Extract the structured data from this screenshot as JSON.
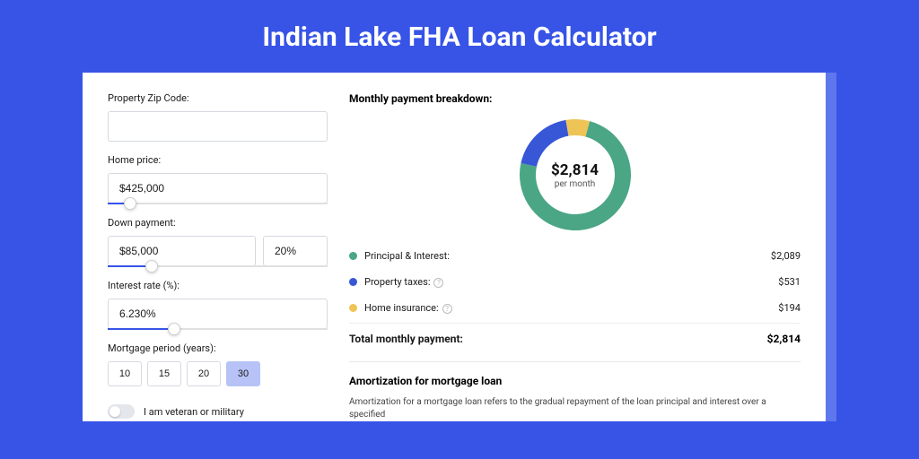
{
  "title": "Indian Lake FHA Loan Calculator",
  "colors": {
    "page_bg": "#3754e7",
    "card_shadow": "#5f77ec",
    "input_border": "#d6d9e0",
    "slider_fill": "#3754e7",
    "btn_active_bg": "#b7c3f6"
  },
  "form": {
    "zip_label": "Property Zip Code:",
    "zip_value": "",
    "home_price_label": "Home price:",
    "home_price_value": "$425,000",
    "home_price_slider_pct": 10,
    "down_label": "Down payment:",
    "down_value": "$85,000",
    "down_pct": "20%",
    "down_slider_pct": 20,
    "rate_label": "Interest rate (%):",
    "rate_value": "6.230%",
    "rate_slider_pct": 30,
    "period_label": "Mortgage period (years):",
    "period_options": [
      "10",
      "15",
      "20",
      "30"
    ],
    "period_active_index": 3,
    "veteran_label": "I am veteran or military"
  },
  "breakdown": {
    "title": "Monthly payment breakdown:",
    "type": "donut",
    "center_amount": "$2,814",
    "center_sub": "per month",
    "donut_size": 124,
    "donut_thickness": 18,
    "series": [
      {
        "label": "Principal & Interest:",
        "value": 2089,
        "display": "$2,089",
        "pct": 74.2,
        "color": "#4aa685",
        "has_info": false
      },
      {
        "label": "Property taxes:",
        "value": 531,
        "display": "$531",
        "pct": 18.9,
        "color": "#3757d7",
        "has_info": true
      },
      {
        "label": "Home insurance:",
        "value": 194,
        "display": "$194",
        "pct": 6.9,
        "color": "#eec456",
        "has_info": true
      }
    ],
    "start_angle_deg": -75,
    "total_label": "Total monthly payment:",
    "total_display": "$2,814"
  },
  "amort": {
    "title": "Amortization for mortgage loan",
    "text": "Amortization for a mortgage loan refers to the gradual repayment of the loan principal and interest over a specified"
  }
}
